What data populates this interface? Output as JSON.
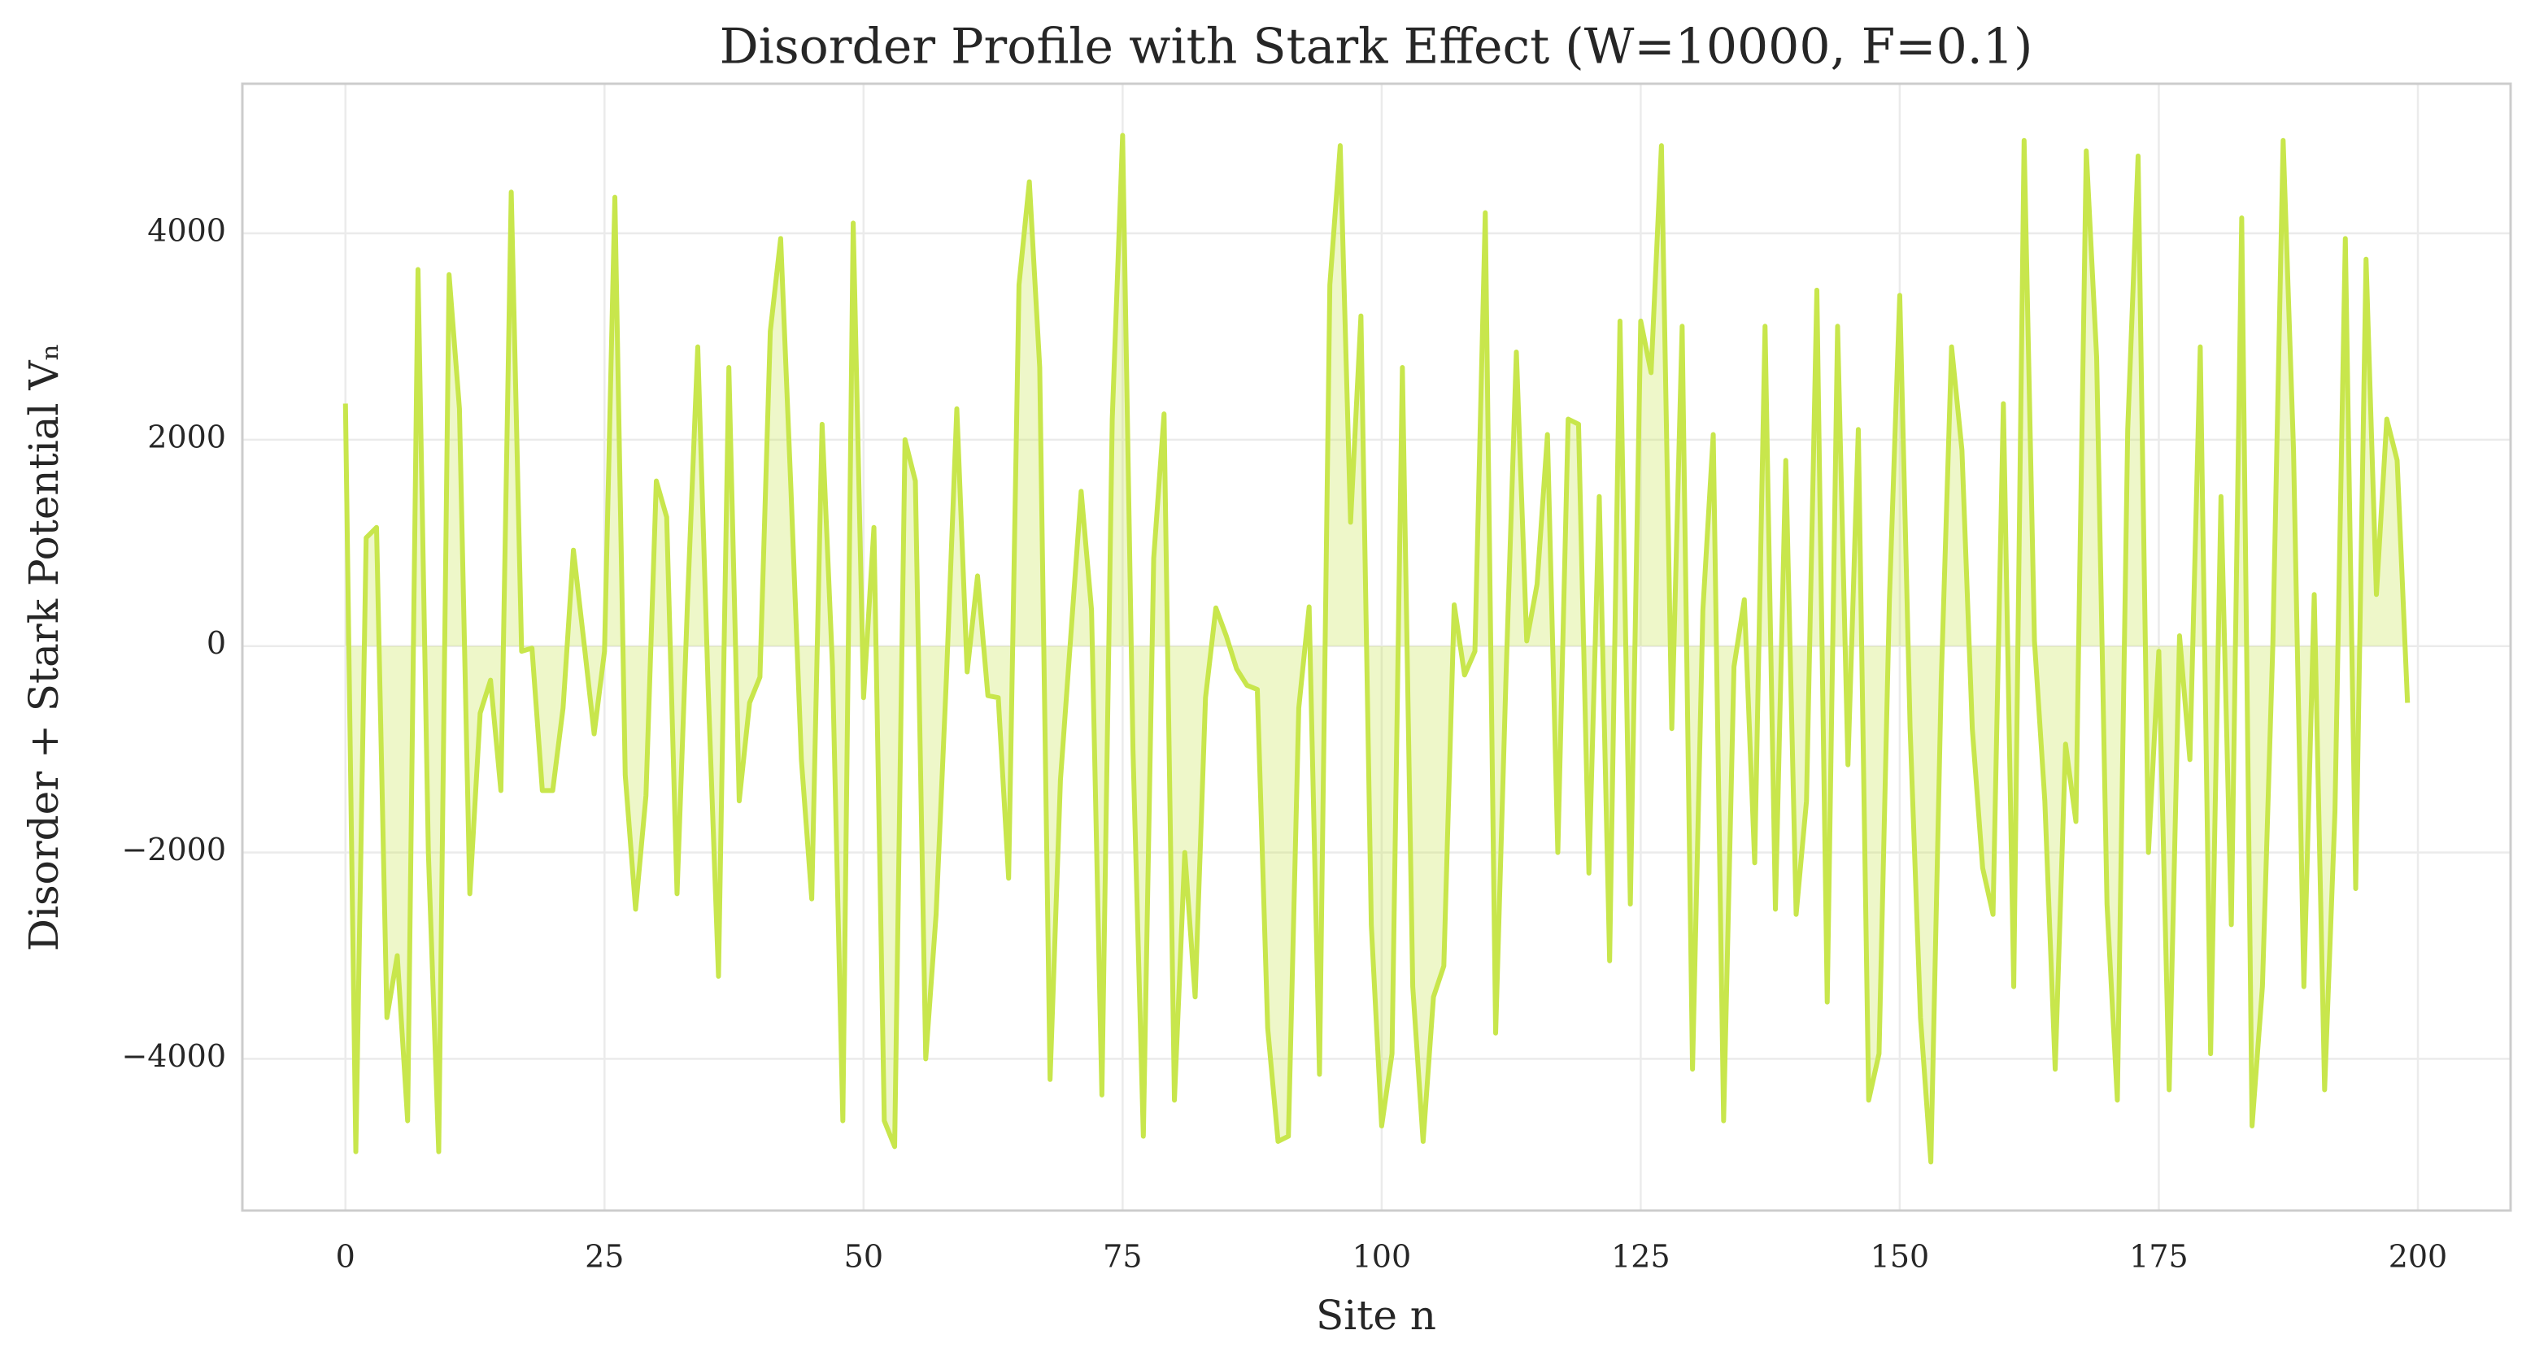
{
  "chart_data": {
    "type": "line",
    "title": "Disorder Profile with Stark Effect (W=10000, F=0.1)",
    "x_label": "Site n",
    "y_label": "Disorder + Stark Potential Vₙ",
    "color": "#c8e64c",
    "fill": true,
    "grid": true,
    "xlim": [
      -9.95,
      208.95
    ],
    "ylim": [
      -5470,
      5450
    ],
    "xticks": [
      0,
      25,
      50,
      75,
      100,
      125,
      150,
      175,
      200
    ],
    "yticks": [
      {
        "value": -4000,
        "label": "−4000"
      },
      {
        "value": -2000,
        "label": "−2000"
      },
      0,
      2000,
      4000
    ],
    "x": [
      0,
      1,
      2,
      3,
      4,
      5,
      6,
      7,
      8,
      9,
      10,
      11,
      12,
      13,
      14,
      15,
      16,
      17,
      18,
      19,
      20,
      21,
      22,
      23,
      24,
      25,
      26,
      27,
      28,
      29,
      30,
      31,
      32,
      33,
      34,
      35,
      36,
      37,
      38,
      39,
      40,
      41,
      42,
      43,
      44,
      45,
      46,
      47,
      48,
      49,
      50,
      51,
      52,
      53,
      54,
      55,
      56,
      57,
      58,
      59,
      60,
      61,
      62,
      63,
      64,
      65,
      66,
      67,
      68,
      69,
      70,
      71,
      72,
      73,
      74,
      75,
      76,
      77,
      78,
      79,
      80,
      81,
      82,
      83,
      84,
      85,
      86,
      87,
      88,
      89,
      90,
      91,
      92,
      93,
      94,
      95,
      96,
      97,
      98,
      99,
      100,
      101,
      102,
      103,
      104,
      105,
      106,
      107,
      108,
      109,
      110,
      111,
      112,
      113,
      114,
      115,
      116,
      117,
      118,
      119,
      120,
      121,
      122,
      123,
      124,
      125,
      126,
      127,
      128,
      129,
      130,
      131,
      132,
      133,
      134,
      135,
      136,
      137,
      138,
      139,
      140,
      141,
      142,
      143,
      144,
      145,
      146,
      147,
      148,
      149,
      150,
      151,
      152,
      153,
      154,
      155,
      156,
      157,
      158,
      159,
      160,
      161,
      162,
      163,
      164,
      165,
      166,
      167,
      168,
      169,
      170,
      171,
      172,
      173,
      174,
      175,
      176,
      177,
      178,
      179,
      180,
      181,
      182,
      183,
      184,
      185,
      186,
      187,
      188,
      189,
      190,
      191,
      192,
      193,
      194,
      195,
      196,
      197,
      198,
      199
    ],
    "values": [
      2350,
      -4900,
      1050,
      1150,
      -3600,
      -3000,
      -4600,
      3650,
      -2000,
      -4900,
      3600,
      2300,
      -2400,
      -650,
      -330,
      -1400,
      4400,
      -50,
      -20,
      -1400,
      -1400,
      -600,
      930,
      50,
      -850,
      -50,
      4350,
      -1250,
      -2550,
      -1450,
      1600,
      1250,
      -2400,
      400,
      2900,
      -400,
      -3200,
      2700,
      -1500,
      -550,
      -300,
      3050,
      3950,
      1500,
      -1100,
      -2450,
      2150,
      -200,
      -4600,
      4100,
      -500,
      1150,
      -4600,
      -4850,
      2000,
      1600,
      -4000,
      -2600,
      -300,
      2300,
      -250,
      680,
      -480,
      -500,
      -2250,
      3500,
      4500,
      2700,
      -4200,
      -1300,
      100,
      1500,
      350,
      -4350,
      2200,
      4950,
      -1000,
      -4750,
      850,
      2250,
      -4400,
      -2000,
      -3400,
      -500,
      370,
      100,
      -220,
      -380,
      -420,
      -3700,
      -4800,
      -4750,
      -600,
      380,
      -4150,
      3500,
      4850,
      1200,
      3200,
      -2700,
      -4650,
      -3950,
      2700,
      -3300,
      -4800,
      -3400,
      -3100,
      400,
      -280,
      -50,
      4200,
      -3750,
      -300,
      2850,
      50,
      600,
      2050,
      -2000,
      2200,
      2150,
      -2200,
      1450,
      -3050,
      3150,
      -2500,
      3150,
      2650,
      4850,
      -800,
      3100,
      -4100,
      350,
      2050,
      -4600,
      -200,
      450,
      -2100,
      3100,
      -2550,
      1800,
      -2600,
      -1500,
      3450,
      -3450,
      3100,
      -1150,
      2100,
      -4400,
      -3950,
      450,
      3400,
      -800,
      -3600,
      -5000,
      -350,
      2900,
      1900,
      -800,
      -2150,
      -2600,
      2350,
      -3300,
      4900,
      50,
      -1500,
      -4100,
      -950,
      -1700,
      4800,
      2800,
      -2500,
      -4400,
      2100,
      4750,
      -2000,
      -50,
      -4300,
      100,
      -1100,
      2900,
      -3950,
      1450,
      -2700,
      4150,
      -4650,
      -3300,
      0,
      4900,
      1900,
      -3300,
      500,
      -4300,
      -1600,
      3950,
      -2350,
      3750,
      500,
      2200,
      1800,
      -550
    ]
  }
}
